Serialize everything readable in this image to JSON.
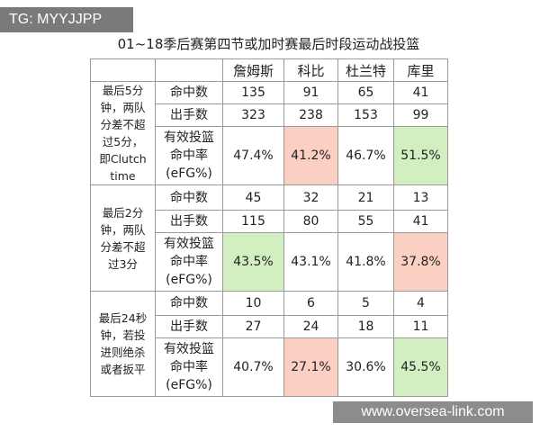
{
  "watermark_top": "TG: MYYJJPP",
  "title": "01~18季后赛第四节或加时赛最后时段运动战投篮",
  "table": {
    "header": [
      "詹姆斯",
      "科比",
      "杜兰特",
      "库里"
    ],
    "groups": [
      {
        "label_lines": [
          "最后5分",
          "钟，两队",
          "分差不超",
          "过5分，",
          "即Clutch",
          "time"
        ],
        "rows": [
          {
            "label_lines": [
              "命中数"
            ],
            "cells": [
              "135",
              "91",
              "65",
              "41"
            ]
          },
          {
            "label_lines": [
              "出手数"
            ],
            "cells": [
              "323",
              "238",
              "153",
              "99"
            ]
          },
          {
            "label_lines": [
              "有效投篮",
              "命中率",
              "(eFG%)"
            ],
            "cells": [
              "47.4%",
              "41.2%",
              "46.7%",
              "51.5%"
            ],
            "colors": [
              null,
              "#fbd0c2",
              null,
              "#d2efc2"
            ]
          }
        ]
      },
      {
        "label_lines": [
          "最后2分",
          "钟，两队",
          "分差不超",
          "过3分"
        ],
        "rows": [
          {
            "label_lines": [
              "命中数"
            ],
            "cells": [
              "45",
              "32",
              "21",
              "13"
            ]
          },
          {
            "label_lines": [
              "出手数"
            ],
            "cells": [
              "115",
              "80",
              "55",
              "41"
            ]
          },
          {
            "label_lines": [
              "有效投篮",
              "命中率",
              "(eFG%)"
            ],
            "cells": [
              "43.5%",
              "43.1%",
              "41.8%",
              "37.8%"
            ],
            "colors": [
              "#d2efc2",
              null,
              null,
              "#fbd0c2"
            ]
          }
        ]
      },
      {
        "label_lines": [
          "最后24秒",
          "钟，若投",
          "进则绝杀",
          "或者扳平"
        ],
        "rows": [
          {
            "label_lines": [
              "命中数"
            ],
            "cells": [
              "10",
              "6",
              "5",
              "4"
            ]
          },
          {
            "label_lines": [
              "出手数"
            ],
            "cells": [
              "27",
              "24",
              "18",
              "11"
            ]
          },
          {
            "label_lines": [
              "有效投篮",
              "命中率",
              "(eFG%)"
            ],
            "cells": [
              "40.7%",
              "27.1%",
              "30.6%",
              "45.5%"
            ],
            "colors": [
              null,
              "#fbd0c2",
              null,
              "#d2efc2"
            ]
          }
        ]
      }
    ]
  },
  "watermark_bottom": "www.oversea-link.com"
}
